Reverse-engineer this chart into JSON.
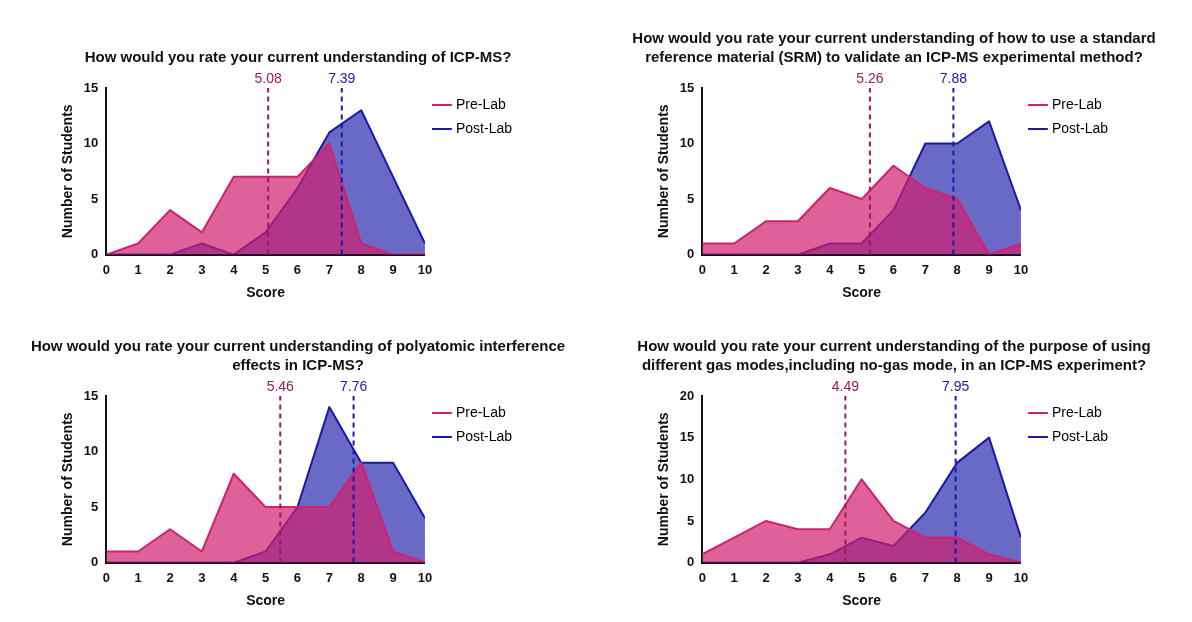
{
  "chart_data": [
    {
      "type": "area",
      "title": "How would you rate your current understanding of ICP-MS?",
      "xlabel": "Score",
      "ylabel": "Number of Students",
      "x": [
        0,
        1,
        2,
        3,
        4,
        5,
        6,
        7,
        8,
        9,
        10
      ],
      "xlim": [
        0,
        10
      ],
      "xticks": [
        0,
        1,
        2,
        3,
        4,
        5,
        6,
        7,
        8,
        9,
        10
      ],
      "ylim": [
        0,
        15
      ],
      "yticks": [
        0,
        5,
        10,
        15
      ],
      "grid": false,
      "legend": "top right",
      "marker": "none",
      "series": [
        {
          "name": "Pre-Lab",
          "color": "#d0206e",
          "values": [
            0,
            1,
            4,
            2,
            7,
            7,
            7,
            10,
            1,
            0,
            0
          ]
        },
        {
          "name": "Post-Lab",
          "color": "#1a1aa8",
          "values": [
            0,
            0,
            0,
            1,
            0,
            2,
            6,
            11,
            13,
            7,
            1
          ]
        }
      ],
      "ref_lines": [
        {
          "axis": "x",
          "value": 5.08,
          "label": "5.08",
          "color": "#a0185a",
          "line_style": "dashed"
        },
        {
          "axis": "x",
          "value": 7.39,
          "label": "7.39",
          "color": "#1a1aa8",
          "line_style": "dashed"
        }
      ]
    },
    {
      "type": "area",
      "title": "How would you rate your current understanding of how to use a standard reference material (SRM) to validate an ICP-MS experimental method?",
      "xlabel": "Score",
      "ylabel": "Number of Students",
      "x": [
        0,
        1,
        2,
        3,
        4,
        5,
        6,
        7,
        8,
        9,
        10
      ],
      "xlim": [
        0,
        10
      ],
      "xticks": [
        0,
        1,
        2,
        3,
        4,
        5,
        6,
        7,
        8,
        9,
        10
      ],
      "ylim": [
        0,
        15
      ],
      "yticks": [
        0,
        5,
        10,
        15
      ],
      "grid": false,
      "legend": "top right",
      "marker": "none",
      "series": [
        {
          "name": "Pre-Lab",
          "color": "#d0206e",
          "values": [
            1,
            1,
            3,
            3,
            6,
            5,
            8,
            6,
            5,
            0,
            1
          ]
        },
        {
          "name": "Post-Lab",
          "color": "#1a1aa8",
          "values": [
            0,
            0,
            0,
            0,
            1,
            1,
            4,
            10,
            10,
            12,
            4
          ]
        }
      ],
      "ref_lines": [
        {
          "axis": "x",
          "value": 5.26,
          "label": "5.26",
          "color": "#a0185a",
          "line_style": "dashed"
        },
        {
          "axis": "x",
          "value": 7.88,
          "label": "7.88",
          "color": "#1a1aa8",
          "line_style": "dashed"
        }
      ]
    },
    {
      "type": "area",
      "title": "How would you rate your current understanding of polyatomic interference effects in ICP-MS?",
      "xlabel": "Score",
      "ylabel": "Number of Students",
      "x": [
        0,
        1,
        2,
        3,
        4,
        5,
        6,
        7,
        8,
        9,
        10
      ],
      "xlim": [
        0,
        10
      ],
      "xticks": [
        0,
        1,
        2,
        3,
        4,
        5,
        6,
        7,
        8,
        9,
        10
      ],
      "ylim": [
        0,
        15
      ],
      "yticks": [
        0,
        5,
        10,
        15
      ],
      "grid": false,
      "legend": "top right",
      "marker": "none",
      "series": [
        {
          "name": "Pre-Lab",
          "color": "#d0206e",
          "values": [
            1,
            1,
            3,
            1,
            8,
            5,
            5,
            5,
            9,
            1,
            0
          ]
        },
        {
          "name": "Post-Lab",
          "color": "#1a1aa8",
          "values": [
            0,
            0,
            0,
            0,
            0,
            1,
            5,
            14,
            9,
            9,
            4
          ]
        }
      ],
      "ref_lines": [
        {
          "axis": "x",
          "value": 5.46,
          "label": "5.46",
          "color": "#a0185a",
          "line_style": "dashed"
        },
        {
          "axis": "x",
          "value": 7.76,
          "label": "7.76",
          "color": "#1a1aa8",
          "line_style": "dashed"
        }
      ]
    },
    {
      "type": "area",
      "title": "How would you rate your current understanding of the purpose of using different gas modes,including no-gas mode, in an ICP-MS experiment?",
      "xlabel": "Score",
      "ylabel": "Number of Students",
      "x": [
        0,
        1,
        2,
        3,
        4,
        5,
        6,
        7,
        8,
        9,
        10
      ],
      "xlim": [
        0,
        10
      ],
      "xticks": [
        0,
        1,
        2,
        3,
        4,
        5,
        6,
        7,
        8,
        9,
        10
      ],
      "ylim": [
        0,
        20
      ],
      "yticks": [
        0,
        5,
        10,
        15,
        20
      ],
      "grid": false,
      "legend": "top right",
      "marker": "none",
      "series": [
        {
          "name": "Pre-Lab",
          "color": "#d0206e",
          "values": [
            1,
            3,
            5,
            4,
            4,
            10,
            5,
            3,
            3,
            1,
            0
          ]
        },
        {
          "name": "Post-Lab",
          "color": "#1a1aa8",
          "values": [
            0,
            0,
            0,
            0,
            1,
            3,
            2,
            6,
            12,
            15,
            3
          ]
        }
      ],
      "ref_lines": [
        {
          "axis": "x",
          "value": 4.49,
          "label": "4.49",
          "color": "#a0185a",
          "line_style": "dashed"
        },
        {
          "axis": "x",
          "value": 7.95,
          "label": "7.95",
          "color": "#1a1aa8",
          "line_style": "dashed"
        }
      ]
    }
  ]
}
